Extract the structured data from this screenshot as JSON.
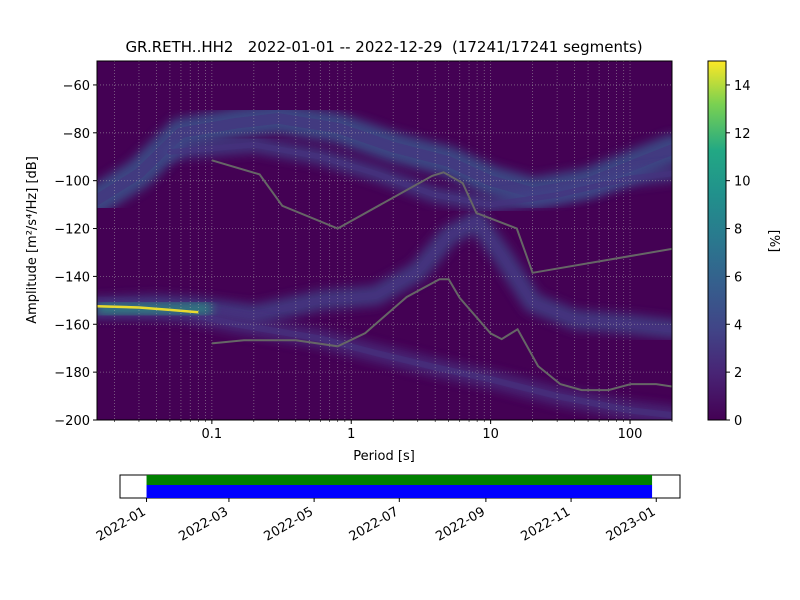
{
  "chart_data": [
    {
      "type": "heatmap",
      "title": "GR.RETH..HH2   2022-01-01 -- 2022-12-29  (17241/17241 segments)",
      "xlabel": "Period [s]",
      "ylabel": "Amplitude [m²/s⁴/Hz] [dB]",
      "xscale": "log",
      "xlim": [
        0.015,
        200
      ],
      "ylim": [
        -200,
        -50
      ],
      "x_ticks": [
        0.1,
        1,
        10,
        100
      ],
      "x_tick_labels": [
        "0.1",
        "1",
        "10",
        "100"
      ],
      "y_ticks": [
        -200,
        -180,
        -160,
        -140,
        -120,
        -100,
        -80,
        -60
      ],
      "y_tick_labels": [
        "−200",
        "−180",
        "−160",
        "−140",
        "−120",
        "−100",
        "−80",
        "−60"
      ],
      "grid": "on",
      "colormap": "viridis",
      "colorbar": {
        "label": "[%]",
        "range": [
          0,
          15
        ],
        "ticks": [
          0,
          2,
          4,
          6,
          8,
          10,
          12,
          14
        ],
        "tick_labels": [
          "0",
          "2",
          "4",
          "6",
          "8",
          "10",
          "12",
          "14"
        ]
      },
      "series": [
        {
          "role": "new high noise model",
          "color": "#666666",
          "points": [
            [
              0.1,
              -91.5
            ],
            [
              0.22,
              -97.4
            ],
            [
              0.32,
              -110.5
            ],
            [
              0.8,
              -120
            ],
            [
              3.8,
              -98
            ],
            [
              4.6,
              -96.5
            ],
            [
              6.3,
              -101
            ],
            [
              7.9,
              -113.5
            ],
            [
              15.4,
              -120
            ],
            [
              20,
              -138.5
            ],
            [
              200,
              -128.5
            ]
          ]
        },
        {
          "role": "new low noise model",
          "color": "#666666",
          "points": [
            [
              0.1,
              -168
            ],
            [
              0.17,
              -166.7
            ],
            [
              0.4,
              -166.7
            ],
            [
              0.8,
              -169.2
            ],
            [
              1.26,
              -163.7
            ],
            [
              2.5,
              -148.6
            ],
            [
              4.3,
              -141.2
            ],
            [
              5.0,
              -141.2
            ],
            [
              6.0,
              -149
            ],
            [
              10,
              -163.8
            ],
            [
              12,
              -166.2
            ],
            [
              15.6,
              -162.1
            ],
            [
              21.9,
              -177.5
            ],
            [
              31.6,
              -185
            ],
            [
              45,
              -187.5
            ],
            [
              70,
              -187.5
            ],
            [
              101,
              -185
            ],
            [
              154,
              -185
            ],
            [
              200,
              -186
            ]
          ]
        }
      ],
      "bands": [
        {
          "label": "microseism / background upper branch",
          "points": [
            [
              0.015,
              -108
            ],
            [
              0.03,
              -97
            ],
            [
              0.06,
              -80
            ],
            [
              0.15,
              -76
            ],
            [
              0.3,
              -74
            ],
            [
              0.8,
              -78
            ],
            [
              2,
              -86
            ],
            [
              5,
              -92
            ],
            [
              10,
              -100
            ],
            [
              20,
              -105
            ],
            [
              50,
              -101
            ],
            [
              100,
              -94
            ],
            [
              200,
              -87
            ]
          ]
        },
        {
          "label": "secondary upper branch",
          "points": [
            [
              0.05,
              -88
            ],
            [
              0.2,
              -85
            ],
            [
              0.6,
              -90
            ],
            [
              1.5,
              -97
            ],
            [
              4,
              -106
            ],
            [
              10,
              -110
            ],
            [
              30,
              -106
            ],
            [
              100,
              -99
            ],
            [
              200,
              -97
            ]
          ]
        },
        {
          "label": "low branch",
          "points": [
            [
              0.015,
              -153
            ],
            [
              0.04,
              -152
            ],
            [
              0.08,
              -153
            ],
            [
              0.2,
              -156
            ],
            [
              0.6,
              -150
            ],
            [
              1.5,
              -148
            ],
            [
              3,
              -138
            ],
            [
              5,
              -123
            ],
            [
              8,
              -117
            ],
            [
              12,
              -131
            ],
            [
              20,
              -151
            ],
            [
              40,
              -158
            ],
            [
              100,
              -160
            ],
            [
              200,
              -162
            ]
          ]
        },
        {
          "label": "lowest branch",
          "points": [
            [
              0.015,
              -153
            ],
            [
              0.06,
              -155
            ],
            [
              0.15,
              -160
            ],
            [
              0.6,
              -166
            ],
            [
              1.5,
              -172
            ],
            [
              4,
              -178
            ],
            [
              10,
              -183
            ],
            [
              30,
              -190
            ],
            [
              100,
              -196
            ],
            [
              200,
              -198
            ]
          ]
        }
      ],
      "peak": {
        "x_range": [
          0.015,
          0.1
        ],
        "y_range": [
          -155,
          -152
        ],
        "value_percent": 15
      }
    },
    {
      "type": "timeline",
      "x_ticks": [
        "2022-01",
        "2022-03",
        "2022-05",
        "2022-07",
        "2022-09",
        "2022-11",
        "2023-01"
      ],
      "xlim": [
        "2021-12-13",
        "2023-01-18"
      ],
      "bars": [
        {
          "color": "#008000",
          "start": "2022-01-01",
          "end": "2022-12-29"
        },
        {
          "color": "#0000ff",
          "start": "2022-01-01",
          "end": "2022-12-29"
        }
      ]
    }
  ]
}
